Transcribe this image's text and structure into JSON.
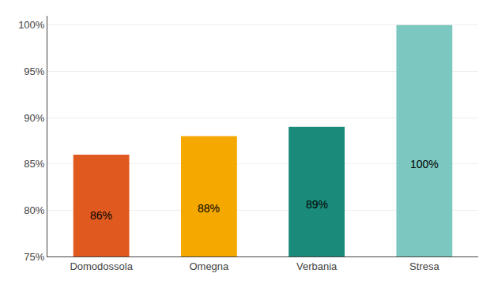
{
  "chart_data": {
    "type": "bar",
    "categories": [
      "Domodossola",
      "Omegna",
      "Verbania",
      "Stresa"
    ],
    "values": [
      86,
      88,
      89,
      100
    ],
    "value_labels": [
      "86%",
      "88%",
      "89%",
      "100%"
    ],
    "data_labels": true,
    "colors": [
      "#E05A20",
      "#F5A800",
      "#1A8A7A",
      "#7CC8C0"
    ],
    "ylim": [
      75,
      101
    ],
    "yticks": [
      {
        "value": 75,
        "label": "75%"
      },
      {
        "value": 80,
        "label": "80%"
      },
      {
        "value": 85,
        "label": "85%"
      },
      {
        "value": 90,
        "label": "90%"
      },
      {
        "value": 95,
        "label": "95%"
      },
      {
        "value": 100,
        "label": "100%"
      }
    ],
    "grid": true
  }
}
